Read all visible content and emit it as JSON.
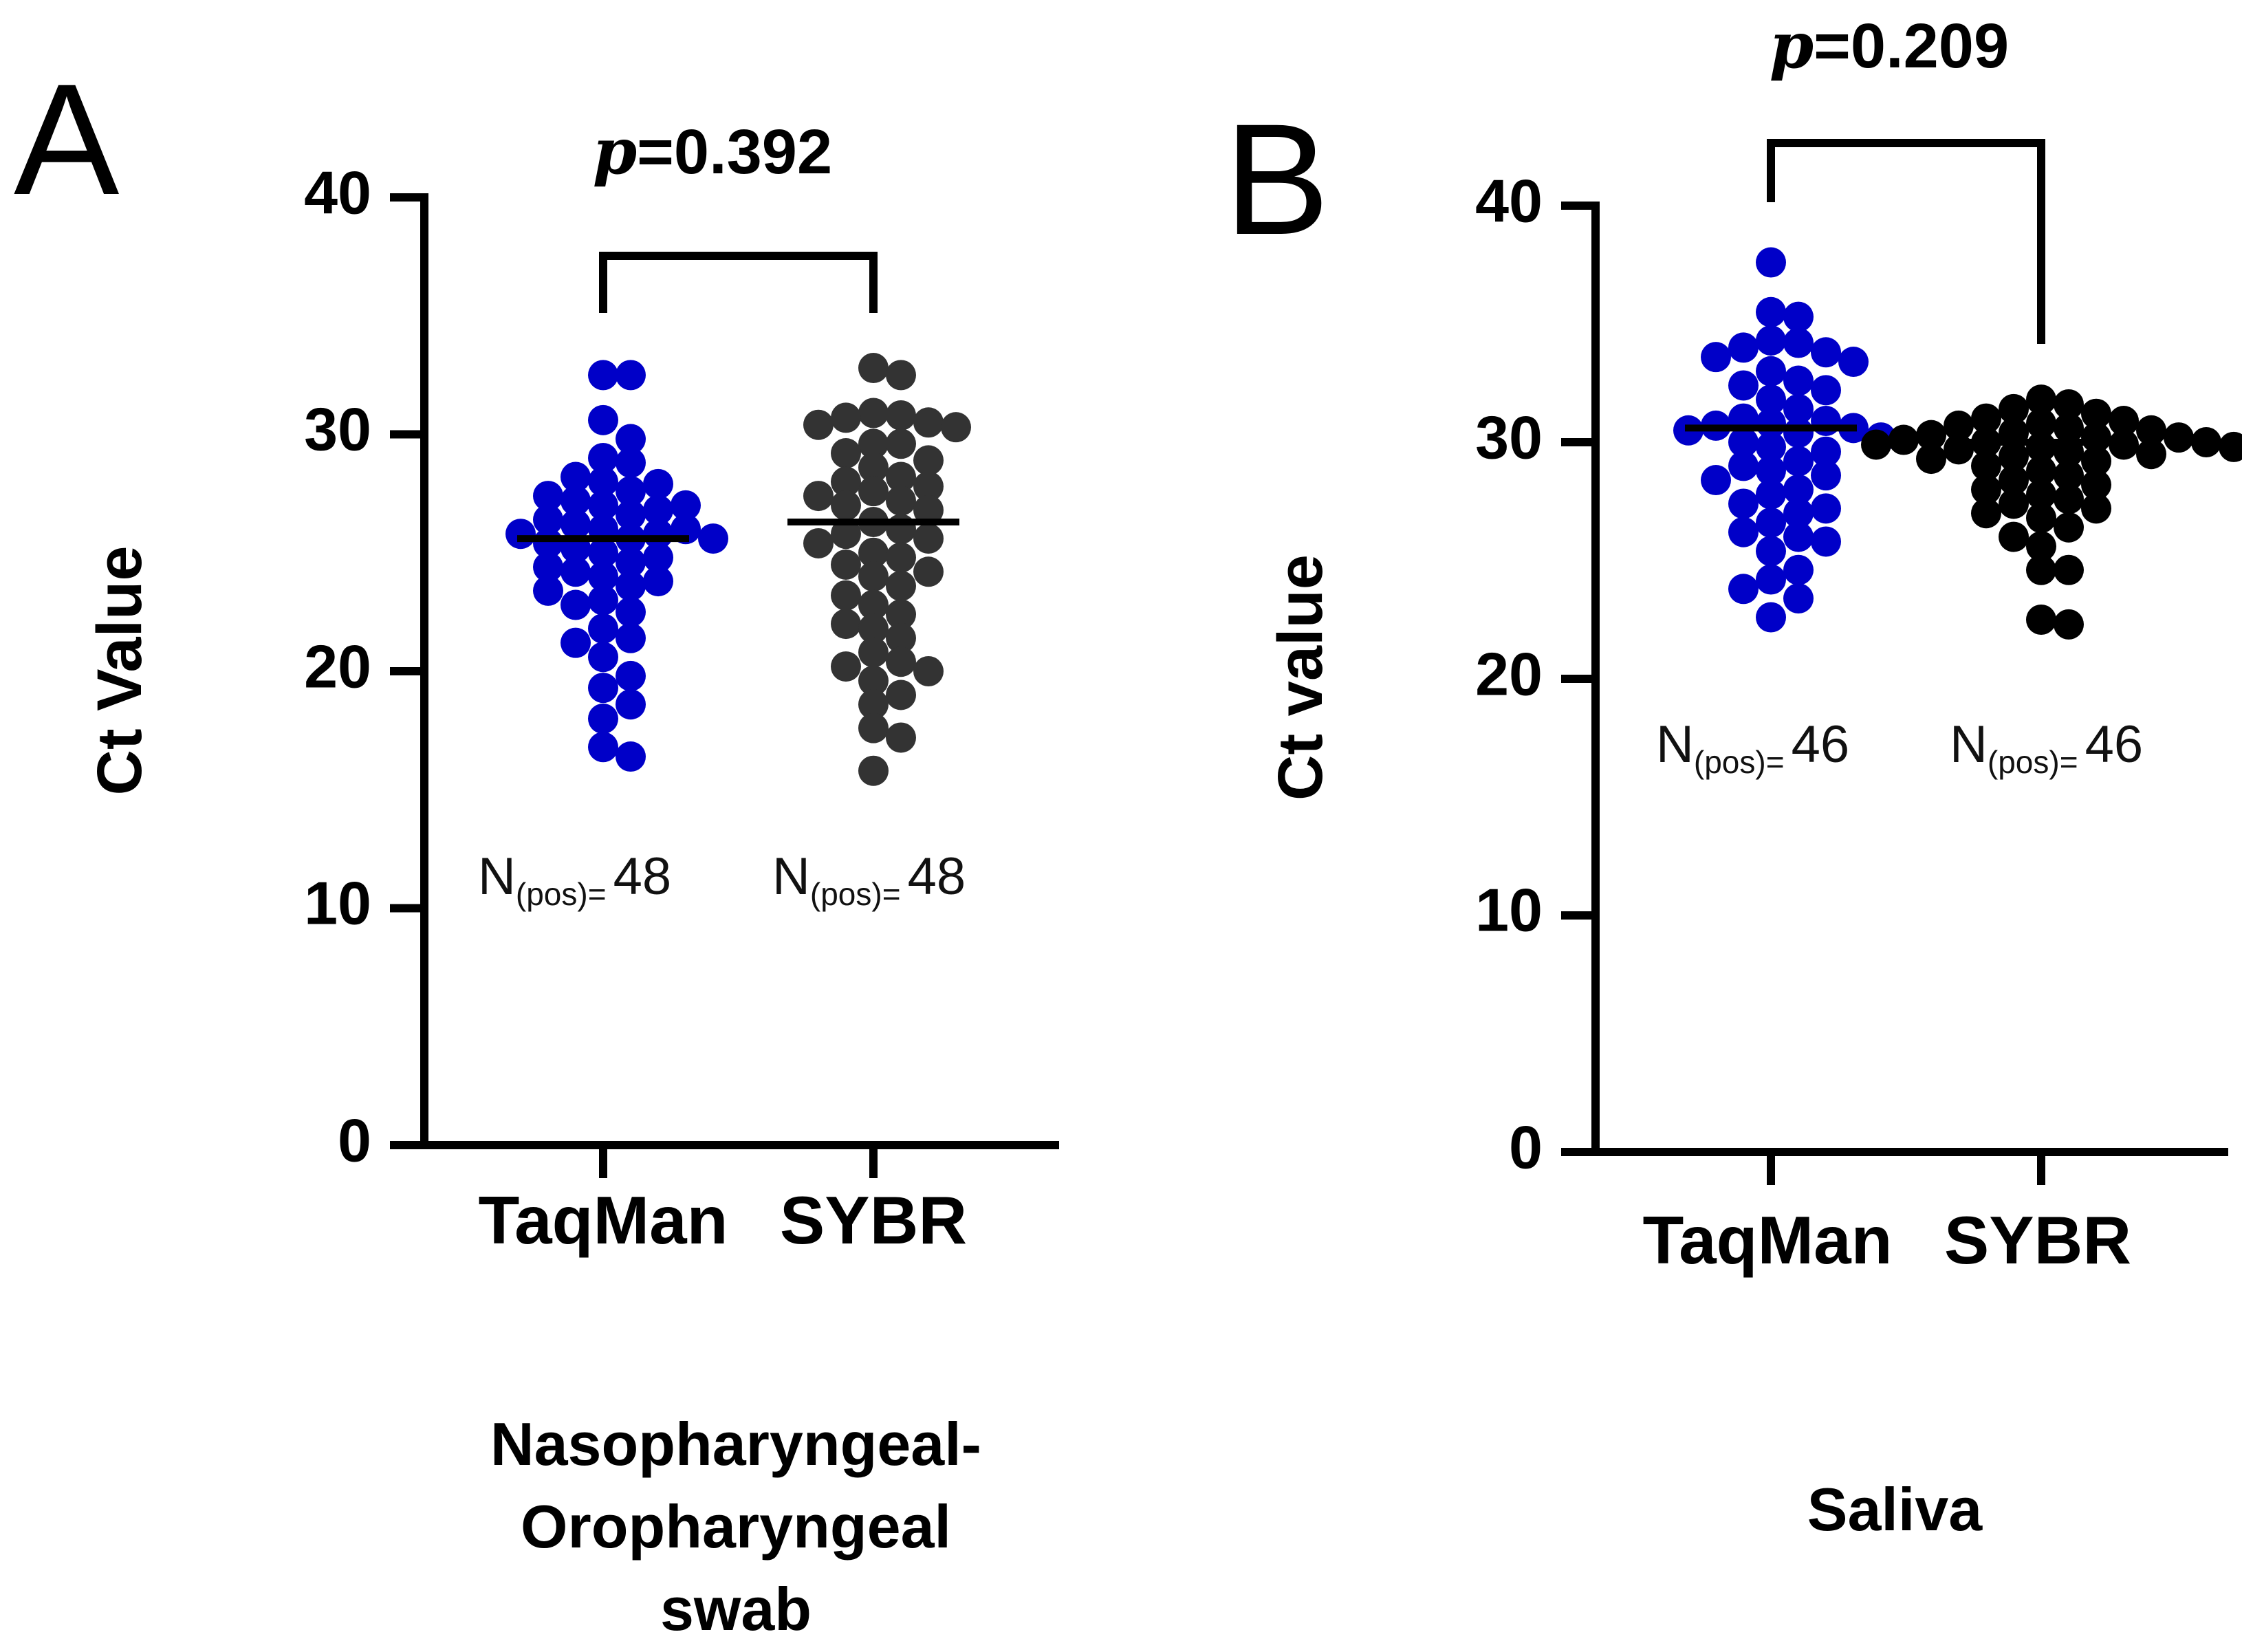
{
  "figure": {
    "background": "#ffffff",
    "axis_color": "#000000"
  },
  "chart_data": [
    {
      "type": "scatter",
      "panel_letter": "A",
      "ylabel": "Ct Value",
      "ylim": [
        0,
        40
      ],
      "yticks": [
        0,
        10,
        20,
        30,
        40
      ],
      "categories": [
        "TaqMan",
        "SYBR"
      ],
      "xlabel_lines": [
        "Nasopharyngeal-",
        "Oropharyngeal",
        "swab"
      ],
      "significance": {
        "prefix": "p",
        "equals": "=",
        "value": "0.392",
        "between": [
          "TaqMan",
          "SYBR"
        ]
      },
      "series": [
        {
          "name": "TaqMan",
          "color": "#0000c8",
          "n_label": "N",
          "n_sub": "(pos)=",
          "n_value": "48",
          "mean": 25.6,
          "points": [
            32.5,
            32.5,
            30.6,
            29.8,
            29.0,
            28.8,
            28.2,
            28.0,
            27.9,
            27.6,
            27.4,
            27.2,
            27.0,
            27.0,
            26.8,
            26.6,
            26.4,
            26.2,
            26.0,
            26.0,
            25.8,
            25.8,
            25.6,
            25.6,
            25.4,
            25.2,
            25.0,
            24.8,
            24.6,
            24.4,
            24.2,
            24.0,
            23.8,
            23.6,
            23.4,
            23.0,
            22.8,
            22.5,
            21.8,
            21.4,
            21.2,
            20.6,
            19.8,
            19.3,
            18.6,
            18.0,
            16.8,
            16.4
          ]
        },
        {
          "name": "SYBR",
          "color": "#333333",
          "n_label": "N",
          "n_sub": "(pos)=",
          "n_value": "48",
          "mean": 26.3,
          "points": [
            32.8,
            32.5,
            30.9,
            30.8,
            30.7,
            30.5,
            30.4,
            30.3,
            29.6,
            29.6,
            29.2,
            28.9,
            28.6,
            28.2,
            28.0,
            27.8,
            27.6,
            27.4,
            27.2,
            27.0,
            26.8,
            26.3,
            26.0,
            25.8,
            25.6,
            25.4,
            25.0,
            24.8,
            24.5,
            24.2,
            24.0,
            23.6,
            23.2,
            22.8,
            22.4,
            22.0,
            21.8,
            21.4,
            20.8,
            20.4,
            20.2,
            20.0,
            19.6,
            19.0,
            18.6,
            17.6,
            17.2,
            15.8
          ]
        }
      ]
    },
    {
      "type": "scatter",
      "panel_letter": "B",
      "ylabel": "Ct value",
      "ylim": [
        0,
        40
      ],
      "yticks": [
        0,
        10,
        20,
        30,
        40
      ],
      "categories": [
        "TaqMan",
        "SYBR"
      ],
      "xlabel_lines": [
        "Saliva"
      ],
      "significance": {
        "prefix": "p",
        "equals": "=",
        "value": "0.209",
        "between": [
          "TaqMan",
          "SYBR"
        ]
      },
      "series": [
        {
          "name": "TaqMan",
          "color": "#0000c8",
          "n_label": "N",
          "n_sub": "(pos)=",
          "n_value": "46",
          "mean": 30.6,
          "points": [
            37.6,
            35.5,
            35.3,
            34.3,
            34.2,
            34.0,
            33.8,
            33.6,
            33.4,
            33.0,
            32.6,
            32.4,
            32.2,
            31.8,
            31.4,
            31.0,
            30.9,
            30.8,
            30.7,
            30.6,
            30.5,
            30.4,
            30.2,
            30.0,
            29.8,
            29.6,
            29.2,
            29.0,
            28.8,
            28.6,
            28.4,
            28.0,
            27.8,
            27.4,
            27.2,
            27.0,
            26.6,
            26.2,
            26.0,
            25.8,
            25.4,
            24.6,
            24.2,
            23.8,
            23.4,
            22.6
          ]
        },
        {
          "name": "SYBR",
          "color": "#000000",
          "n_label": "N",
          "n_sub": "(pos)=",
          "n_value": "46",
          "mean": 30.0,
          "points": [
            31.8,
            31.6,
            31.4,
            31.2,
            31.0,
            30.9,
            30.8,
            30.7,
            30.6,
            30.5,
            30.4,
            30.3,
            30.2,
            30.2,
            30.1,
            30.0,
            30.0,
            29.9,
            29.9,
            29.8,
            29.8,
            29.7,
            29.6,
            29.5,
            29.4,
            29.3,
            29.2,
            29.0,
            28.8,
            28.6,
            28.4,
            28.2,
            28.0,
            27.8,
            27.6,
            27.4,
            27.2,
            27.0,
            26.8,
            26.4,
            26.0,
            25.6,
            24.6,
            24.6,
            22.5,
            22.3
          ]
        }
      ]
    }
  ]
}
